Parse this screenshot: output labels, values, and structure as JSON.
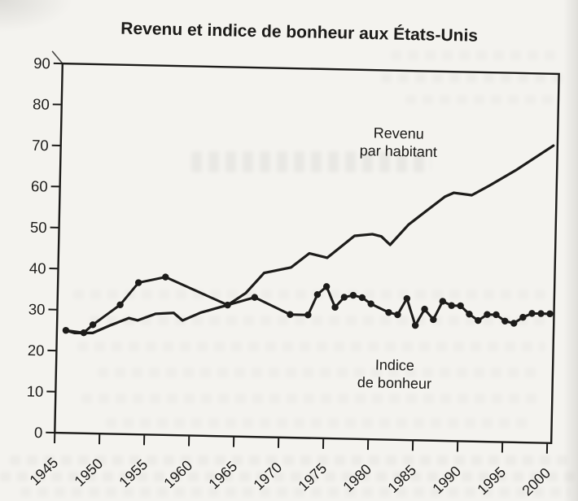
{
  "figure": {
    "title": "Revenu et indice de bonheur aux États-Unis"
  },
  "colors": {
    "ink": "#1d1c1a",
    "paper": "#f4f3ef"
  },
  "chart_data": {
    "type": "line",
    "title": "Revenu et indice de bonheur aux États-Unis",
    "xlabel": "",
    "ylabel": "",
    "grid": false,
    "x_axis": {
      "ticks": [
        1945,
        1950,
        1955,
        1960,
        1965,
        1970,
        1975,
        1980,
        1985,
        1990,
        1995,
        2000
      ],
      "range": [
        1945,
        2001
      ]
    },
    "y_axis": {
      "ticks": [
        0,
        10,
        20,
        30,
        40,
        50,
        60,
        70,
        80,
        90
      ],
      "range": [
        0,
        90
      ]
    },
    "series": [
      {
        "name": "Revenu par habitant",
        "marker": "none",
        "points": [
          [
            1946,
            25
          ],
          [
            1947,
            24.4
          ],
          [
            1949,
            24.5
          ],
          [
            1951,
            26.5
          ],
          [
            1953,
            28.3
          ],
          [
            1954,
            27.8
          ],
          [
            1956,
            29.5
          ],
          [
            1958,
            29.8
          ],
          [
            1959,
            28
          ],
          [
            1961,
            30
          ],
          [
            1964,
            32
          ],
          [
            1966,
            35
          ],
          [
            1968,
            40
          ],
          [
            1971,
            41.5
          ],
          [
            1973,
            45
          ],
          [
            1975,
            44
          ],
          [
            1978,
            49.5
          ],
          [
            1980,
            50
          ],
          [
            1981,
            49.5
          ],
          [
            1982,
            47.5
          ],
          [
            1984,
            52.5
          ],
          [
            1986,
            56
          ],
          [
            1988,
            59.5
          ],
          [
            1989,
            60.5
          ],
          [
            1991,
            60
          ],
          [
            1993,
            62.5
          ],
          [
            1996,
            66.5
          ],
          [
            1998,
            69.5
          ],
          [
            2000,
            72.5
          ]
        ]
      },
      {
        "name": "Indice de bonheur",
        "marker": "circle",
        "points": [
          [
            1946,
            25
          ],
          [
            1948,
            24.5
          ],
          [
            1949,
            26.5
          ],
          [
            1952,
            31.5
          ],
          [
            1954,
            37
          ],
          [
            1957,
            38.5
          ],
          [
            1964,
            32
          ],
          [
            1967,
            34
          ],
          [
            1971,
            30
          ],
          [
            1973,
            30
          ],
          [
            1974,
            35
          ],
          [
            1975,
            37
          ],
          [
            1976,
            32
          ],
          [
            1977,
            34.5
          ],
          [
            1978,
            35
          ],
          [
            1979,
            34.5
          ],
          [
            1980,
            33
          ],
          [
            1982,
            31
          ],
          [
            1983,
            30.5
          ],
          [
            1984,
            34.5
          ],
          [
            1985,
            28
          ],
          [
            1986,
            32
          ],
          [
            1987,
            29.5
          ],
          [
            1988,
            34
          ],
          [
            1989,
            33
          ],
          [
            1990,
            33
          ],
          [
            1991,
            31
          ],
          [
            1992,
            29.5
          ],
          [
            1993,
            31
          ],
          [
            1994,
            31
          ],
          [
            1995,
            29.5
          ],
          [
            1996,
            29
          ],
          [
            1997,
            30.5
          ],
          [
            1998,
            31.5
          ],
          [
            1999,
            31.5
          ],
          [
            2000,
            31.5
          ]
        ]
      }
    ],
    "annotations": [
      {
        "id": "income-label",
        "lines": [
          "Revenu",
          "par habitant"
        ],
        "year": 1982.7,
        "value": 73.5
      },
      {
        "id": "happiness-label",
        "lines": [
          "Indice",
          "de bonheur"
        ],
        "year": 1982.8,
        "value": 17
      }
    ]
  }
}
